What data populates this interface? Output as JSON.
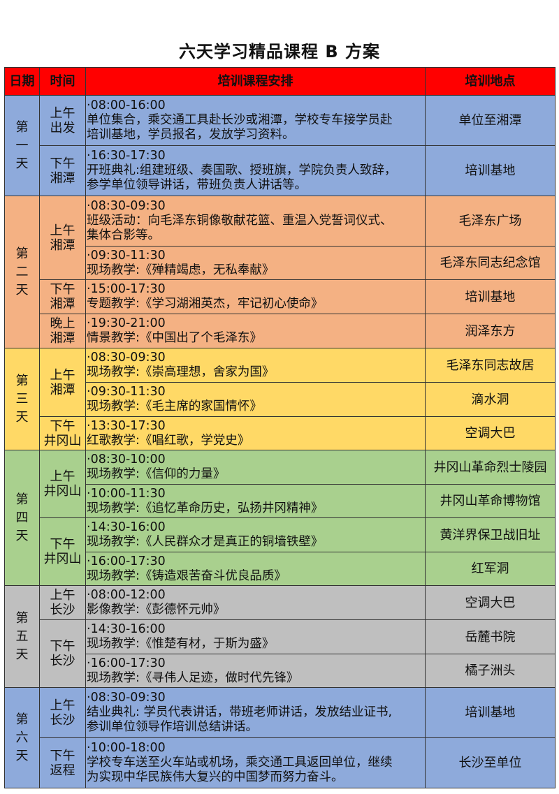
{
  "title": "六天学习精品课程 B 方案",
  "header": {
    "date": "日期",
    "time": "时间",
    "schedule": "培训课程安排",
    "location": "培训地点"
  },
  "days": [
    {
      "label": "第一天",
      "color": "#8eaadb",
      "rows": [
        {
          "time": "上午\n出发",
          "time_span": 1,
          "clock": "·08:00-16:00",
          "content": "单位集合，乘交通工具赴长沙或湘潭，学校专车接学员赴\n培训基地，学员报名，发放学习资料。",
          "location": "单位至湘潭"
        },
        {
          "time": "下午\n湘潭",
          "time_span": 1,
          "clock": "·16:30-17:30",
          "content": "开班典礼:组建班级、奏国歌、授班旗，学院负责人致辞，\n参学单位领导讲话，带班负责人讲话等。",
          "location": "培训基地"
        }
      ]
    },
    {
      "label": "第二天",
      "color": "#f4b183",
      "rows": [
        {
          "time": "上午\n湘潭",
          "time_span": 2,
          "clock": "·08:30-09:30",
          "content": "班级活动：向毛泽东铜像敬献花篮、重温入党誓词仪式、\n集体合影等。",
          "location": "毛泽东广场"
        },
        {
          "clock": "·09:30-11:30",
          "content": "现场教学:《殚精竭虑，无私奉献》",
          "location": "毛泽东同志纪念馆"
        },
        {
          "time": "下午\n湘潭",
          "time_span": 1,
          "clock": "·15:00-17:30",
          "content": "专题教学:《学习湖湘英杰，牢记初心使命》",
          "location": "培训基地"
        },
        {
          "time": "晚上\n湘潭",
          "time_span": 1,
          "clock": "·19:30-21:00",
          "content": "情景教学:《中国出了个毛泽东》",
          "location": "润泽东方"
        }
      ]
    },
    {
      "label": "第三天",
      "color": "#ffd966",
      "rows": [
        {
          "time": "上午\n湘潭",
          "time_span": 2,
          "clock": "·08:30-09:30",
          "content": "现场教学:《崇高理想，舍家为国》",
          "location": "毛泽东同志故居"
        },
        {
          "clock": "·09:30-11:30",
          "content": "现场教学:《毛主席的家国情怀》",
          "location": "滴水洞"
        },
        {
          "time": "下午\n井冈山",
          "time_span": 1,
          "clock": "·13:30-17:30",
          "content": "红歌教学:《唱红歌，学党史》",
          "location": "空调大巴"
        }
      ]
    },
    {
      "label": "第四天",
      "color": "#a9d08e",
      "rows": [
        {
          "time": "上午\n井冈山",
          "time_span": 2,
          "clock": "·08:30-10:00",
          "content": "现场教学:《信仰的力量》",
          "location": "井冈山革命烈士陵园"
        },
        {
          "clock": "·10:00-11:30",
          "content": "现场教学:《追忆革命历史，弘扬井冈精神》",
          "location": "井冈山革命博物馆"
        },
        {
          "time": "下午\n井冈山",
          "time_span": 2,
          "clock": "·14:30-16:00",
          "content": "现场教学:《人民群众才是真正的铜墙铁壁》",
          "location": "黄洋界保卫战旧址"
        },
        {
          "clock": "·16:00-17:30",
          "content": "现场教学:《铸造艰苦奋斗优良品质》",
          "location": "红军洞"
        }
      ]
    },
    {
      "label": "第五天",
      "color": "#bfbfbf",
      "rows": [
        {
          "time": "上午\n长沙",
          "time_span": 1,
          "clock": "·08:00-12:00",
          "content": "影像教学:《彭德怀元帅》",
          "location": "空调大巴"
        },
        {
          "time": "下午\n长沙",
          "time_span": 2,
          "clock": "·14:30-16:00",
          "content": "现场教学:《惟楚有材，于斯为盛》",
          "location": "岳麓书院"
        },
        {
          "clock": "·16:00-17:30",
          "content": "现场教学:《寻伟人足迹，做时代先锋》",
          "location": "橘子洲头"
        }
      ]
    },
    {
      "label": "第六天",
      "color": "#8eaadb",
      "rows": [
        {
          "time": "上午\n长沙",
          "time_span": 1,
          "clock": "·08:30-09:30",
          "content": "结业典礼: 学员代表讲话，带班老师讲话，发放结业证书,\n参训单位领导作培训总结讲话。",
          "location": "培训基地"
        },
        {
          "time": "下午\n返程",
          "time_span": 1,
          "clock": "·10:00-18:00",
          "content": "学校专车送至火车站或机场，乘交通工具返回单位，继续\n为实现中华民族伟大复兴的中国梦而努力奋斗。",
          "location": "长沙至单位"
        }
      ]
    }
  ]
}
